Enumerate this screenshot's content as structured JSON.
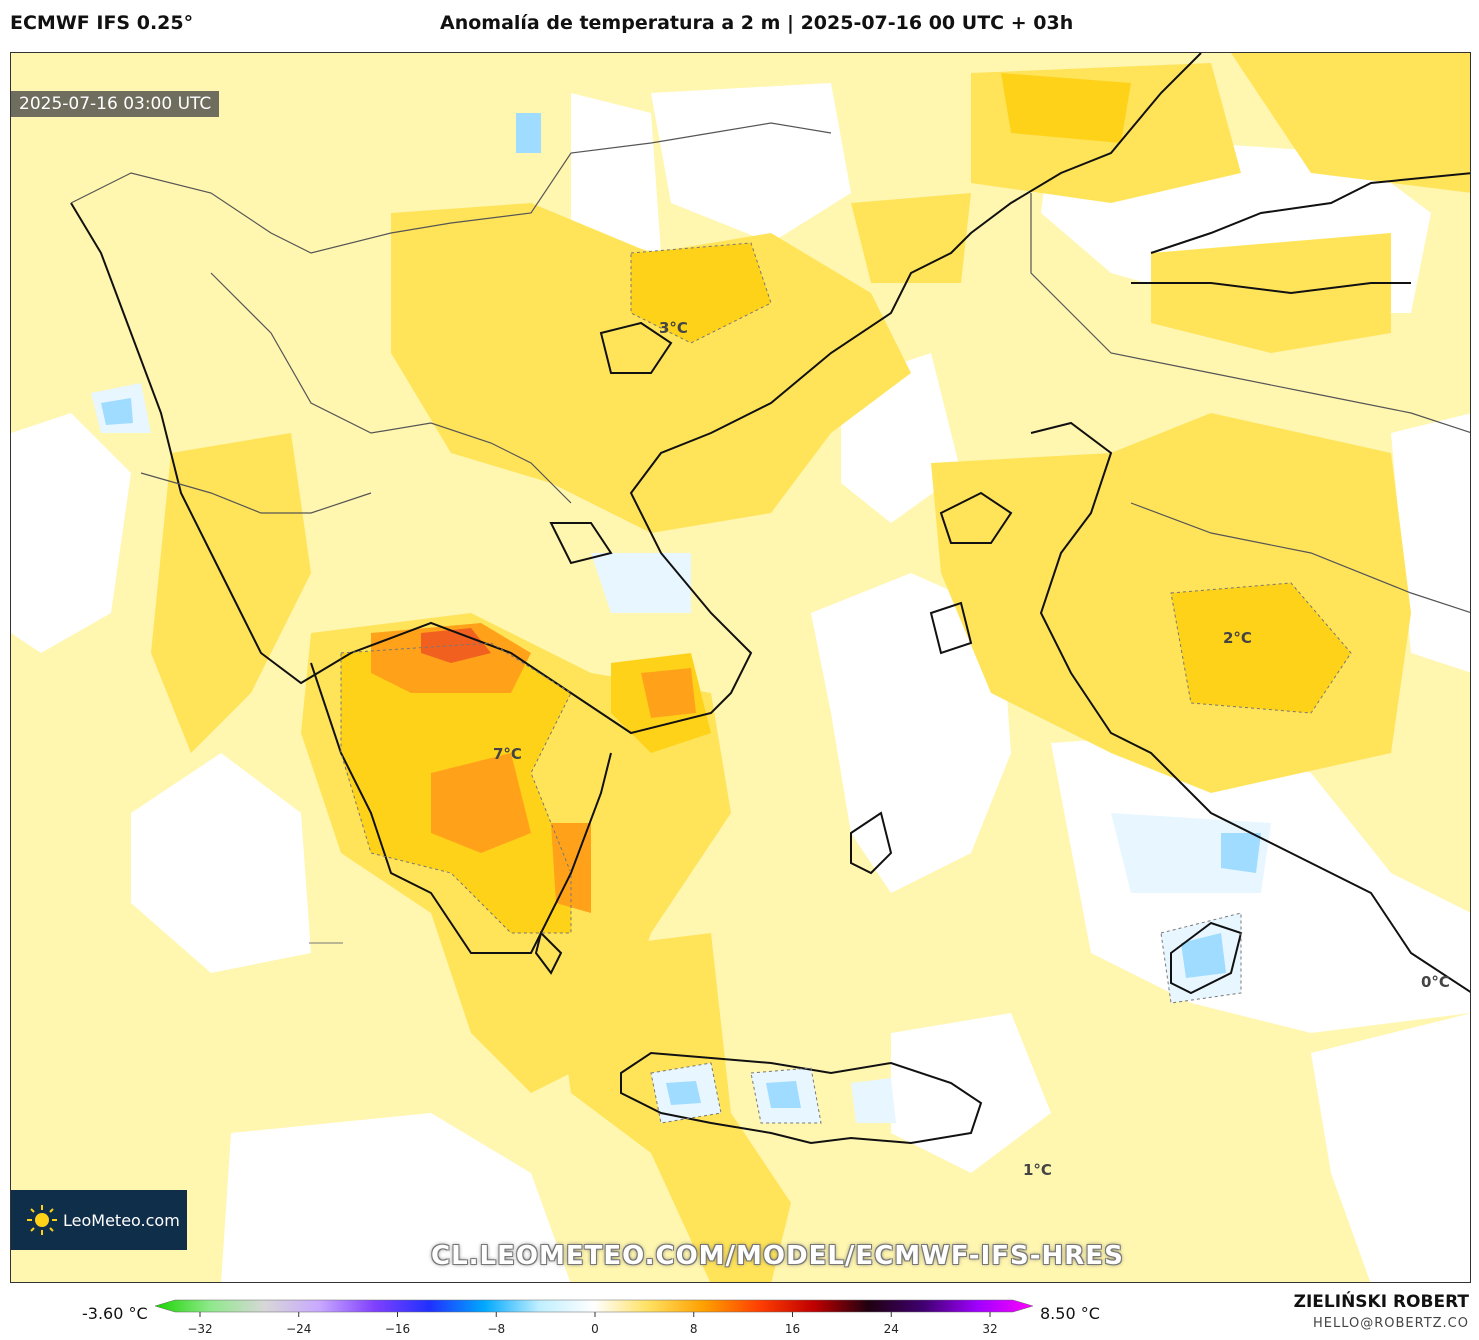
{
  "header": {
    "model": "ECMWF IFS 0.25°",
    "title": "Anomalía de temperatura a 2 m | 2025-07-16 00 UTC + 03h"
  },
  "map": {
    "valid_time": "2025-07-16 03:00 UTC",
    "value_labels": [
      "3°C",
      "2°C",
      "7°C",
      "0°C",
      "1°C"
    ],
    "logo_text": "LeoMeteo.com",
    "watermark": "CL.LEOMETEO.COM/MODEL/ECMWF-IFS-HRES",
    "colors": {
      "light_anomaly": "#fff6b0",
      "mid_anomaly": "#ffe45a",
      "warm_anomaly": "#ffd21a",
      "hot_anomaly": "#ffa21a",
      "very_hot": "#f26020",
      "cool_anomaly": "#e8f6ff",
      "cold_anomaly": "#9fdcff"
    }
  },
  "colorbar": {
    "min_label": "-3.60 °C",
    "max_label": "8.50 °C",
    "ticks": [
      "−32",
      "−24",
      "−16",
      "−8",
      "0",
      "8",
      "16",
      "24",
      "32"
    ],
    "gradient": [
      "#19d400",
      "#8ee98a",
      "#d7d7d7",
      "#c8a8ff",
      "#8040ff",
      "#2030ff",
      "#00a8ff",
      "#bfefff",
      "#ffffff",
      "#ffe060",
      "#ffa000",
      "#ff4000",
      "#c00000",
      "#200010",
      "#400070",
      "#a000ff",
      "#ff00ff"
    ]
  },
  "credits": {
    "author": "ZIELIŃSKI ROBERT",
    "email": "HELLO@ROBERTZ.CO"
  }
}
